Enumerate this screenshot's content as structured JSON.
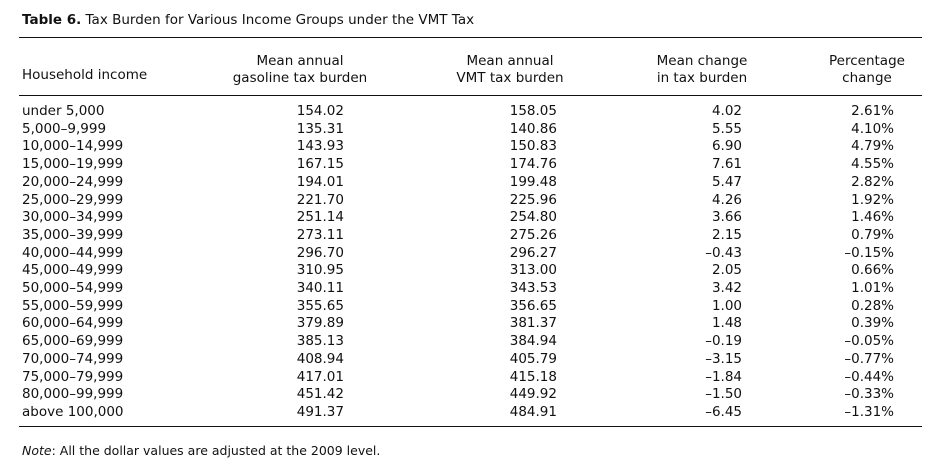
{
  "table": {
    "label": "Table 6.",
    "title": "Tax Burden for Various Income Groups under the VMT Tax",
    "headers": {
      "income": "Household income",
      "gas_line1": "Mean annual",
      "gas_line2": "gasoline tax burden",
      "vmt_line1": "Mean annual",
      "vmt_line2": "VMT tax burden",
      "change_line1": "Mean change",
      "change_line2": "in tax burden",
      "pct_line1": "Percentage",
      "pct_line2": "change"
    },
    "rows": [
      [
        "under 5,000",
        "154.02",
        "158.05",
        "4.02",
        "2.61%"
      ],
      [
        "5,000–9,999",
        "135.31",
        "140.86",
        "5.55",
        "4.10%"
      ],
      [
        "10,000–14,999",
        "143.93",
        "150.83",
        "6.90",
        "4.79%"
      ],
      [
        "15,000–19,999",
        "167.15",
        "174.76",
        "7.61",
        "4.55%"
      ],
      [
        "20,000–24,999",
        "194.01",
        "199.48",
        "5.47",
        "2.82%"
      ],
      [
        "25,000–29,999",
        "221.70",
        "225.96",
        "4.26",
        "1.92%"
      ],
      [
        "30,000–34,999",
        "251.14",
        "254.80",
        "3.66",
        "1.46%"
      ],
      [
        "35,000–39,999",
        "273.11",
        "275.26",
        "2.15",
        "0.79%"
      ],
      [
        "40,000–44,999",
        "296.70",
        "296.27",
        "–0.43",
        "–0.15%"
      ],
      [
        "45,000–49,999",
        "310.95",
        "313.00",
        "2.05",
        "0.66%"
      ],
      [
        "50,000–54,999",
        "340.11",
        "343.53",
        "3.42",
        "1.01%"
      ],
      [
        "55,000–59,999",
        "355.65",
        "356.65",
        "1.00",
        "0.28%"
      ],
      [
        "60,000–64,999",
        "379.89",
        "381.37",
        "1.48",
        "0.39%"
      ],
      [
        "65,000–69,999",
        "385.13",
        "384.94",
        "–0.19",
        "–0.05%"
      ],
      [
        "70,000–74,999",
        "408.94",
        "405.79",
        "–3.15",
        "–0.77%"
      ],
      [
        "75,000–79,999",
        "417.01",
        "415.18",
        "–1.84",
        "–0.44%"
      ],
      [
        "80,000–99,999",
        "451.42",
        "449.92",
        "–1.50",
        "–0.33%"
      ],
      [
        "above 100,000",
        "491.37",
        "484.91",
        "–6.45",
        "–1.31%"
      ]
    ]
  },
  "note": {
    "label": "Note",
    "text": ": All the dollar values are adjusted at the 2009 level."
  }
}
